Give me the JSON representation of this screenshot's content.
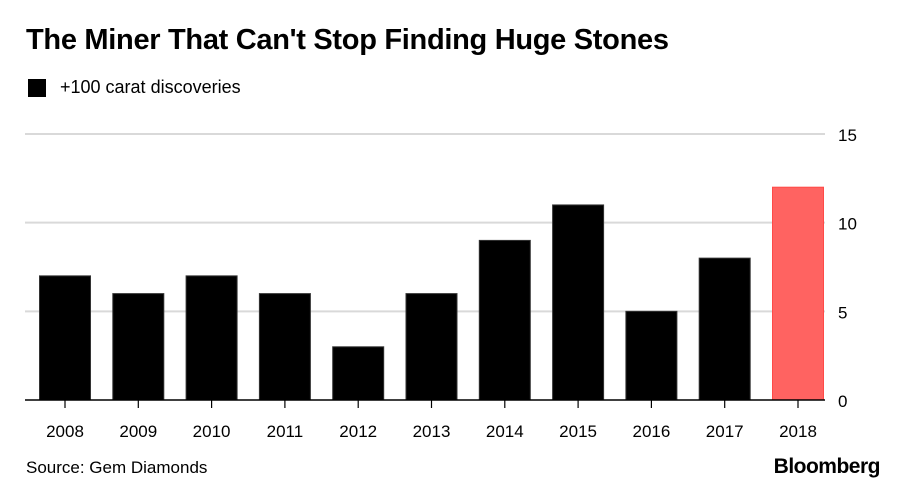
{
  "chart_data": {
    "type": "bar",
    "title": "The Miner That Can't Stop Finding Huge Stones",
    "legend": [
      {
        "label": "+100 carat discoveries",
        "color": "#000000"
      }
    ],
    "legend_position": "top-left",
    "categories": [
      "2008",
      "2009",
      "2010",
      "2011",
      "2012",
      "2013",
      "2014",
      "2015",
      "2016",
      "2017",
      "2018"
    ],
    "values": [
      7,
      6,
      7,
      6,
      3,
      6,
      9,
      11,
      5,
      8,
      12
    ],
    "highlight": {
      "category": "2018",
      "color": "#ff6361"
    },
    "bar_color": "#000000",
    "xlabel": "",
    "ylabel": "",
    "ylim": [
      0,
      15
    ],
    "yticks": [
      0,
      5,
      10,
      15
    ],
    "ytick_labels": [
      "0",
      "5",
      "10",
      "15"
    ],
    "y_axis_side": "right",
    "grid": true,
    "grid_color": "#d9d9d9",
    "source": "Source: Gem Diamonds",
    "brand": "Bloomberg"
  }
}
